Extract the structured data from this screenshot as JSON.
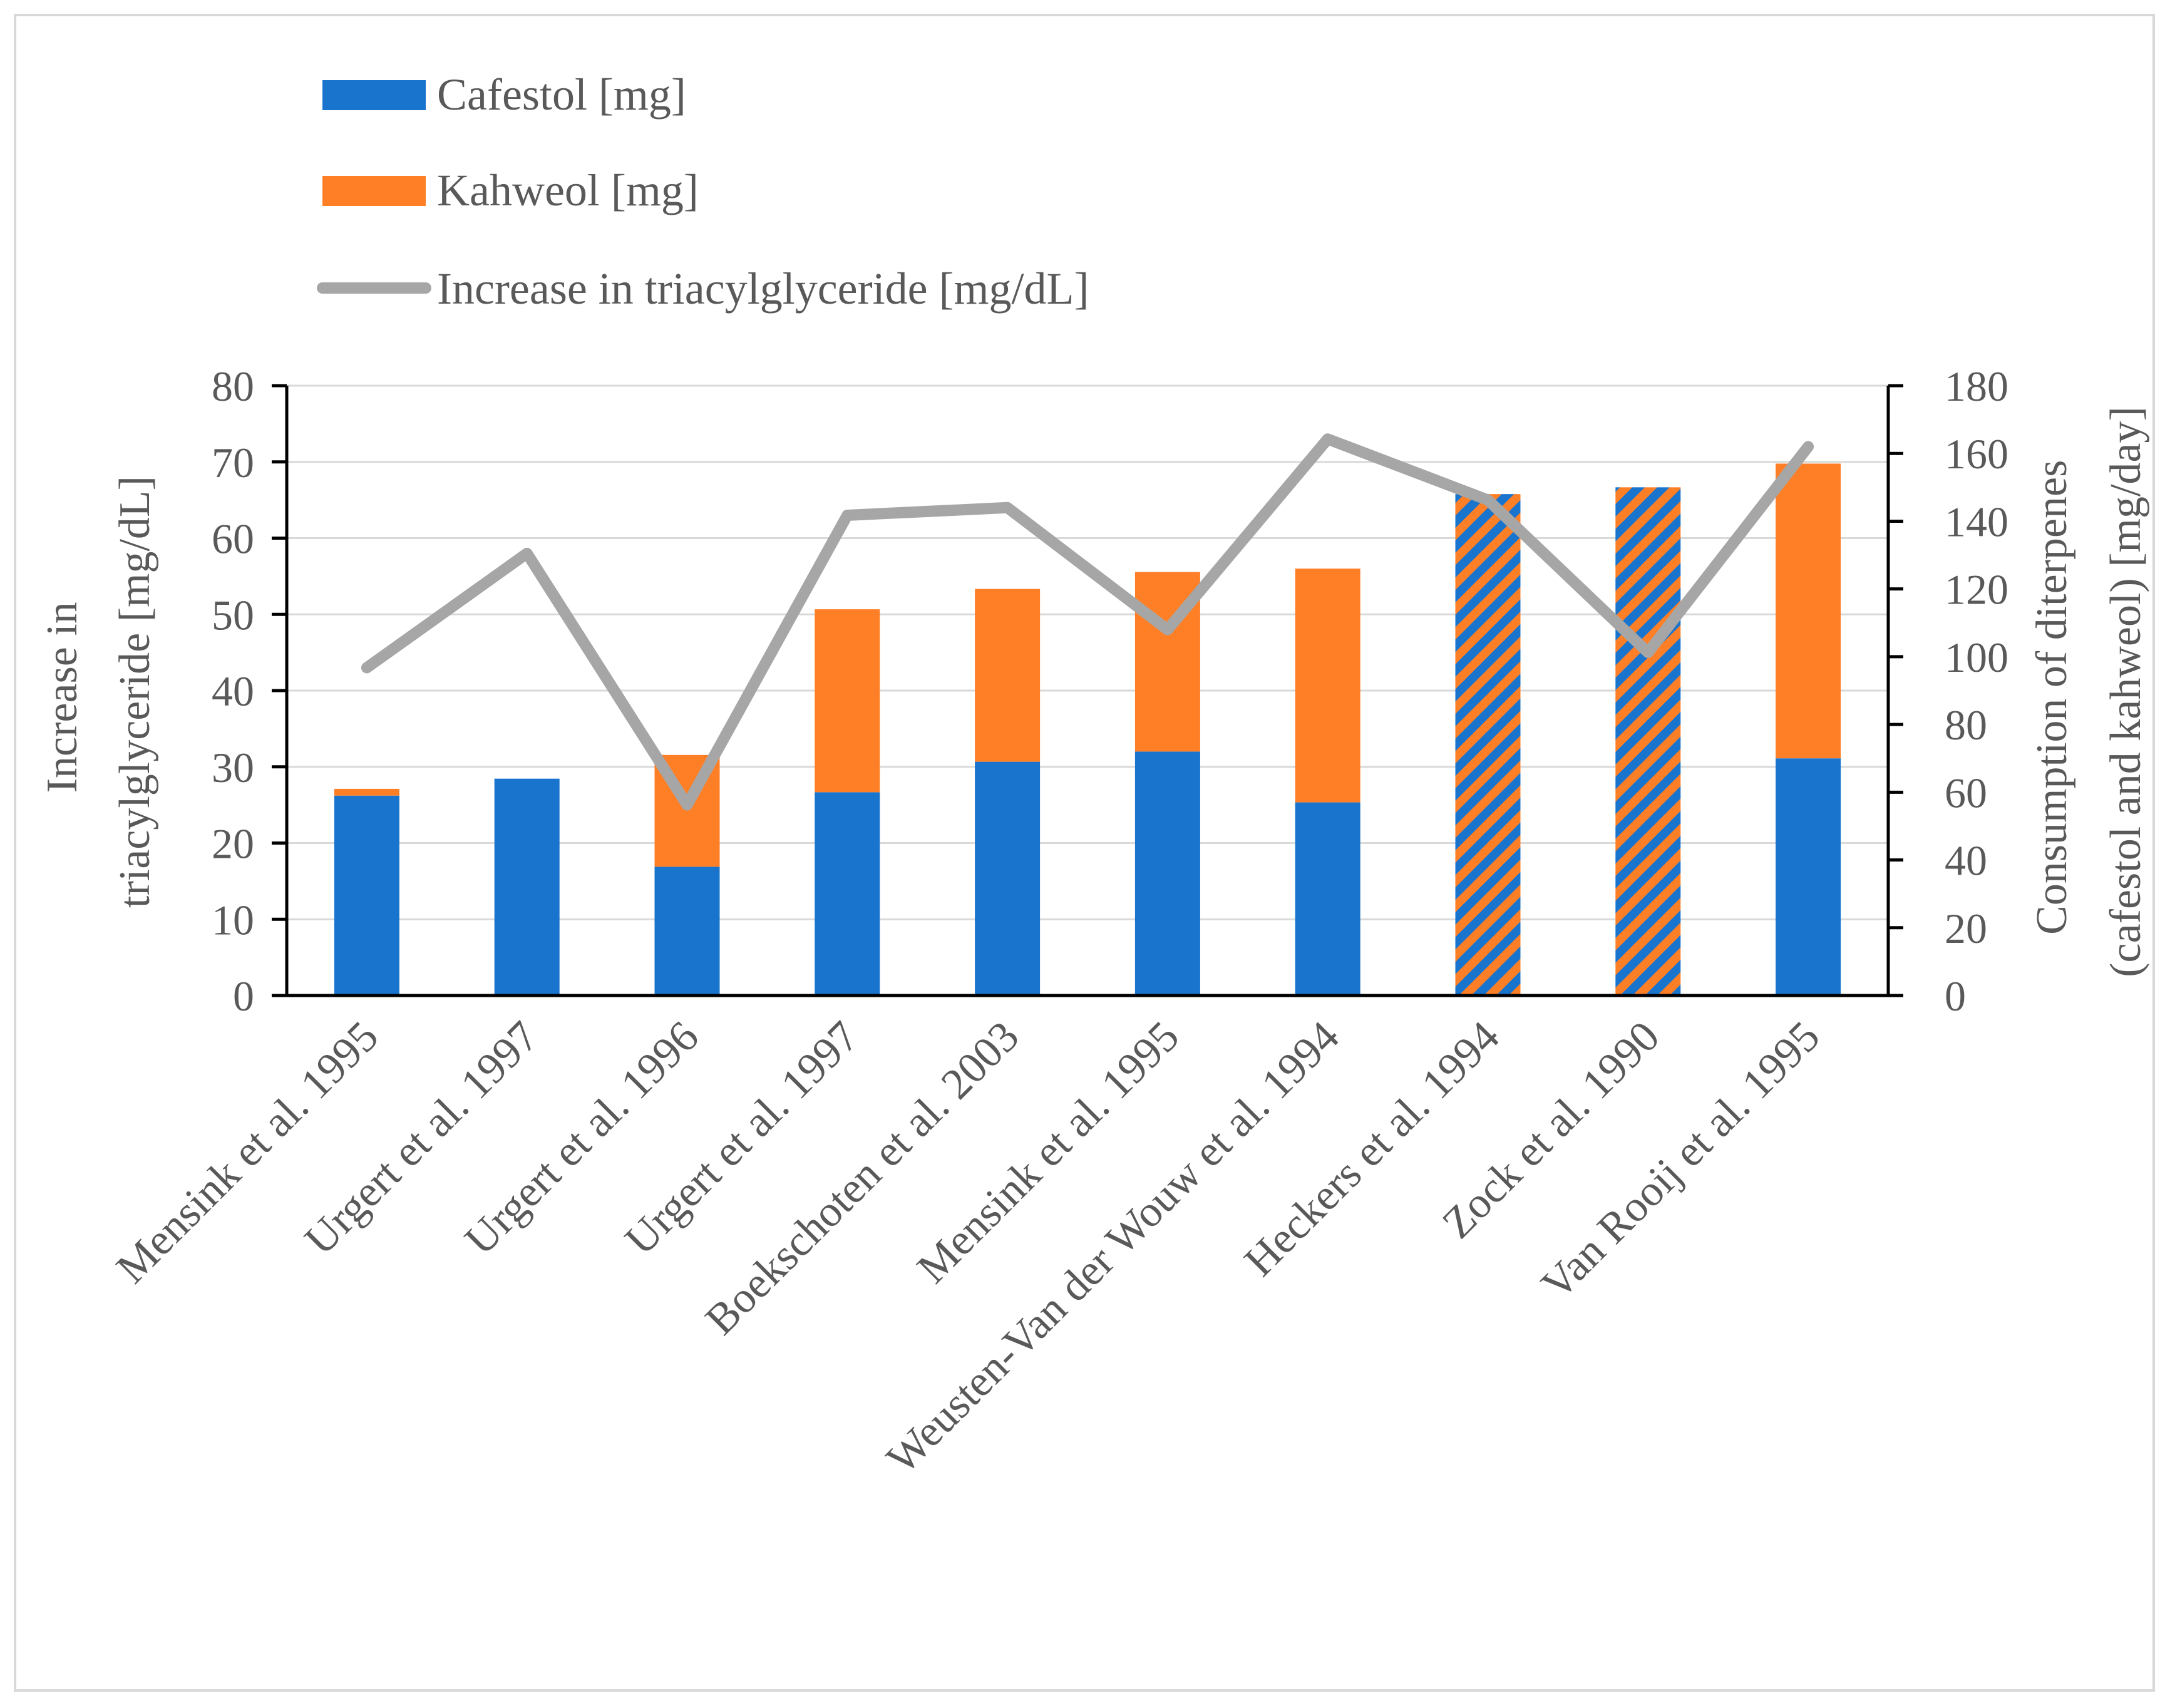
{
  "chart_data": {
    "type": "bar",
    "stacked": true,
    "title": "",
    "categories": [
      "Mensink et al. 1995",
      "Urgert et al. 1997",
      "Urgert et al. 1996",
      "Urgert et al. 1997",
      "Boekschoten et al. 2003",
      "Mensink et al. 1995",
      "Weusten-Van der Wouw et al. 1994",
      "Heckers et al. 1994",
      "Zock et al. 1990",
      "Van Rooij et al. 1995"
    ],
    "series": [
      {
        "name": "Cafestol [mg]",
        "type": "bar",
        "axis": "right",
        "color": "#1874cd",
        "values": [
          59,
          64,
          38,
          60,
          69,
          72,
          57,
          null,
          null,
          70
        ]
      },
      {
        "name": "Kahweol [mg]",
        "type": "bar",
        "axis": "right",
        "color": "#ff7f27",
        "values": [
          2,
          0,
          33,
          54,
          51,
          53,
          69,
          null,
          null,
          87
        ]
      },
      {
        "name": "Increase in triacylglyceride [mg/dL]",
        "type": "line",
        "axis": "left",
        "color": "#a6a6a6",
        "values": [
          43,
          58,
          25,
          63,
          64,
          48,
          73,
          65,
          45,
          72
        ]
      }
    ],
    "combined_unspecified": {
      "note": "hatched bars (cafestol + kahweol not separated)",
      "values": [
        null,
        null,
        null,
        null,
        null,
        null,
        null,
        148,
        150,
        null
      ]
    },
    "ylabel": "Increase in triacylglyceride [mg/dL]",
    "ylabel_lines": [
      "Increase in",
      "triacylglyceride [mg/dL]"
    ],
    "y2label": "Consumption of diterpenes (cafestol and kahweol) [mg/day]",
    "y2label_lines": [
      "Consumption of diterpenes",
      "(cafestol and kahweol) [mg/day]"
    ],
    "ylim": [
      0,
      80
    ],
    "yticks": [
      0,
      10,
      20,
      30,
      40,
      50,
      60,
      70,
      80
    ],
    "y2lim": [
      0,
      180
    ],
    "y2ticks": [
      0,
      20,
      40,
      60,
      80,
      100,
      120,
      140,
      160,
      180
    ],
    "legend_position": "top-left",
    "grid": true
  },
  "colors": {
    "cafestol": "#1874cd",
    "kahweol": "#ff7f27",
    "line": "#a6a6a6",
    "grid": "#d9d9d9",
    "axis": "#000000",
    "text": "#595959"
  }
}
